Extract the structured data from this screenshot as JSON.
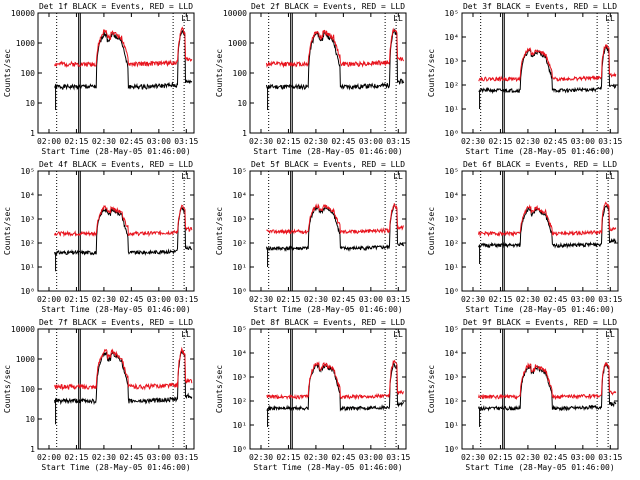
{
  "colors": {
    "events": "#000000",
    "lld": "#e8141e",
    "axis": "#000000",
    "background": "#ffffff"
  },
  "chart_data": [
    {
      "type": "line",
      "title": "Det 1f BLACK = Events, RED = LLD",
      "ylabel": "Counts/sec",
      "xlabel": "Start Time (28-May-05 01:46:00)",
      "yscale": "log",
      "ylim": [
        1,
        10000
      ],
      "yticks": [
        "1",
        "10",
        "100",
        "1000",
        "10000"
      ],
      "xticks": [
        "02:00",
        "02:15",
        "02:30",
        "02:45",
        "03:00",
        "03:15"
      ],
      "series": [
        {
          "name": "Events",
          "color": "black",
          "baseline_counts": 35,
          "flare1_peak_counts": 2000,
          "flare2_peak_counts": 2500
        },
        {
          "name": "LLD",
          "color": "red",
          "baseline_counts": 200,
          "flare1_peak_counts": 2400,
          "flare2_peak_counts": 3000
        }
      ],
      "annotations": [
        "LL"
      ]
    },
    {
      "type": "line",
      "title": "Det 2f BLACK = Events, RED = LLD",
      "ylabel": "Counts/sec",
      "xlabel": "Start Time (28-May-05 01:46:00)",
      "yscale": "log",
      "ylim": [
        1,
        10000
      ],
      "yticks": [
        "1",
        "10",
        "100",
        "1000",
        "10000"
      ],
      "xticks": [
        "02:30",
        "02:15",
        "02:30",
        "02:45",
        "03:00",
        "03:15"
      ],
      "series": [
        {
          "name": "Events",
          "color": "black",
          "baseline_counts": 35,
          "flare1_peak_counts": 2000,
          "flare2_peak_counts": 2500
        },
        {
          "name": "LLD",
          "color": "red",
          "baseline_counts": 200,
          "flare1_peak_counts": 2400,
          "flare2_peak_counts": 3000
        }
      ],
      "annotations": [
        "LL"
      ]
    },
    {
      "type": "line",
      "title": "Det 3f BLACK = Events, RED = LLD",
      "ylabel": "Counts/sec",
      "xlabel": "Start Time (28-May-05 01:46:00)",
      "yscale": "log",
      "ylim": [
        1,
        100000
      ],
      "yticks": [
        "10⁰",
        "10¹",
        "10²",
        "10³",
        "10⁴",
        "10⁵"
      ],
      "xticks": [
        "02:30",
        "02:15",
        "02:30",
        "02:45",
        "03:00",
        "03:15"
      ],
      "series": [
        {
          "name": "Events",
          "color": "black",
          "baseline_counts": 60,
          "flare1_peak_counts": 2500,
          "flare2_peak_counts": 4000
        },
        {
          "name": "LLD",
          "color": "red",
          "baseline_counts": 180,
          "flare1_peak_counts": 3000,
          "flare2_peak_counts": 5000
        }
      ],
      "annotations": [
        "LL"
      ]
    },
    {
      "type": "line",
      "title": "Det 4f BLACK = Events, RED = LLD",
      "ylabel": "Counts/sec",
      "xlabel": "Start Time (28-May-05 01:46:00)",
      "yscale": "log",
      "ylim": [
        1,
        100000
      ],
      "yticks": [
        "10⁰",
        "10¹",
        "10²",
        "10³",
        "10⁴",
        "10⁵"
      ],
      "xticks": [
        "02:00",
        "02:15",
        "02:30",
        "02:45",
        "03:00",
        "03:15"
      ],
      "series": [
        {
          "name": "Events",
          "color": "black",
          "baseline_counts": 40,
          "flare1_peak_counts": 2500,
          "flare2_peak_counts": 3000
        },
        {
          "name": "LLD",
          "color": "red",
          "baseline_counts": 250,
          "flare1_peak_counts": 3000,
          "flare2_peak_counts": 3500
        }
      ],
      "annotations": [
        "LL"
      ]
    },
    {
      "type": "line",
      "title": "Det 5f BLACK = Events, RED = LLD",
      "ylabel": "Counts/sec",
      "xlabel": "Start Time (28-May-05 01:46:00)",
      "yscale": "log",
      "ylim": [
        1,
        100000
      ],
      "yticks": [
        "10⁰",
        "10¹",
        "10²",
        "10³",
        "10⁴",
        "10⁵"
      ],
      "xticks": [
        "02:30",
        "02:15",
        "02:30",
        "02:45",
        "03:00",
        "03:15"
      ],
      "series": [
        {
          "name": "Events",
          "color": "black",
          "baseline_counts": 60,
          "flare1_peak_counts": 3000,
          "flare2_peak_counts": 3500
        },
        {
          "name": "LLD",
          "color": "red",
          "baseline_counts": 300,
          "flare1_peak_counts": 3500,
          "flare2_peak_counts": 4000
        }
      ],
      "annotations": [
        "LL"
      ]
    },
    {
      "type": "line",
      "title": "Det 6f BLACK = Events, RED = LLD",
      "ylabel": "Counts/sec",
      "xlabel": "Start Time (28-May-05 01:46:00)",
      "yscale": "log",
      "ylim": [
        1,
        100000
      ],
      "yticks": [
        "10⁰",
        "10¹",
        "10²",
        "10³",
        "10⁴",
        "10⁵"
      ],
      "xticks": [
        "02:30",
        "02:15",
        "02:30",
        "02:45",
        "03:00",
        "03:15"
      ],
      "series": [
        {
          "name": "Events",
          "color": "black",
          "baseline_counts": 80,
          "flare1_peak_counts": 2500,
          "flare2_peak_counts": 4000
        },
        {
          "name": "LLD",
          "color": "red",
          "baseline_counts": 250,
          "flare1_peak_counts": 3000,
          "flare2_peak_counts": 5000
        }
      ],
      "annotations": [
        "LL"
      ]
    },
    {
      "type": "line",
      "title": "Det 7f BLACK = Events, RED = LLD",
      "ylabel": "Counts/sec",
      "xlabel": "Start Time (28-May-05 01:46:00)",
      "yscale": "log",
      "ylim": [
        1,
        10000
      ],
      "yticks": [
        "1",
        "10",
        "100",
        "1000",
        "10000"
      ],
      "xticks": [
        "02:00",
        "02:15",
        "02:30",
        "02:45",
        "03:00",
        "03:15"
      ],
      "series": [
        {
          "name": "Events",
          "color": "black",
          "baseline_counts": 40,
          "flare1_peak_counts": 1500,
          "flare2_peak_counts": 1800
        },
        {
          "name": "LLD",
          "color": "red",
          "baseline_counts": 120,
          "flare1_peak_counts": 1800,
          "flare2_peak_counts": 2000
        }
      ],
      "annotations": [
        "LL"
      ]
    },
    {
      "type": "line",
      "title": "Det 8f BLACK = Events, RED = LLD",
      "ylabel": "Counts/sec",
      "xlabel": "Start Time (28-May-05 01:46:00)",
      "yscale": "log",
      "ylim": [
        1,
        100000
      ],
      "yticks": [
        "10⁰",
        "10¹",
        "10²",
        "10³",
        "10⁴",
        "10⁵"
      ],
      "xticks": [
        "02:30",
        "02:15",
        "02:30",
        "02:45",
        "03:00",
        "03:15"
      ],
      "series": [
        {
          "name": "Events",
          "color": "black",
          "baseline_counts": 50,
          "flare1_peak_counts": 3000,
          "flare2_peak_counts": 3500
        },
        {
          "name": "LLD",
          "color": "red",
          "baseline_counts": 150,
          "flare1_peak_counts": 3500,
          "flare2_peak_counts": 4500
        }
      ],
      "annotations": [
        "LL"
      ]
    },
    {
      "type": "line",
      "title": "Det 9f BLACK = Events, RED = LLD",
      "ylabel": "Counts/sec",
      "xlabel": "Start Time (28-May-05 01:46:00)",
      "yscale": "log",
      "ylim": [
        1,
        100000
      ],
      "yticks": [
        "10⁰",
        "10¹",
        "10²",
        "10³",
        "10⁴",
        "10⁵"
      ],
      "xticks": [
        "02:30",
        "02:15",
        "02:30",
        "02:45",
        "03:00",
        "03:15"
      ],
      "series": [
        {
          "name": "Events",
          "color": "black",
          "baseline_counts": 50,
          "flare1_peak_counts": 2500,
          "flare2_peak_counts": 3500
        },
        {
          "name": "LLD",
          "color": "red",
          "baseline_counts": 150,
          "flare1_peak_counts": 3000,
          "flare2_peak_counts": 4000
        }
      ],
      "annotations": [
        "LL"
      ]
    }
  ]
}
